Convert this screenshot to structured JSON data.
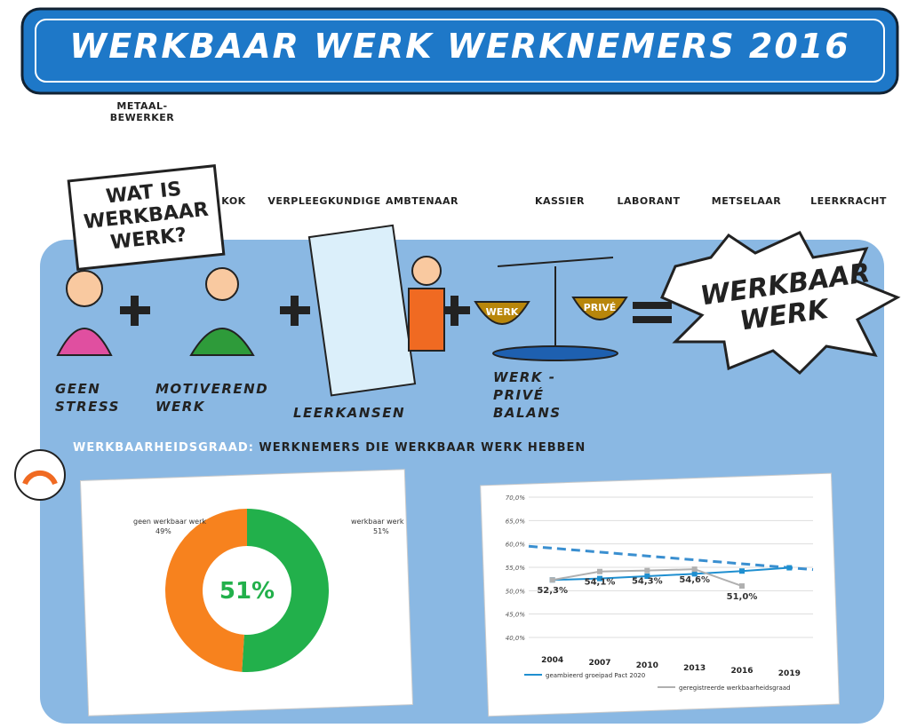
{
  "title": "WERKBAAR WERK WERKNEMERS 2016",
  "occupations": [
    "METAAL-BEWERKER",
    "KOK",
    "VERPLEEGKUNDIGE",
    "AMBTENAAR",
    "KASSIER",
    "LABORANT",
    "METSELAAR",
    "LEERKRACHT"
  ],
  "question": "WAT IS WERKBAAR WERK?",
  "components": [
    "GEEN STRESS",
    "MOTIVEREND WERK",
    "LEERKANSEN",
    "WERK - PRIVÉ BALANS"
  ],
  "scale_labels": [
    "WERK",
    "PRIVÉ"
  ],
  "result": "WERKBAAR WERK",
  "section_title": {
    "highlight": "WERKBAARHEIDSGRAAD:",
    "rest": "WERKNEMERS DIE WERKBAAR WERK HEBBEN"
  },
  "chart_data": [
    {
      "type": "pie",
      "donut": true,
      "categories": [
        "geen werkbaar werk",
        "werkbaar werk"
      ],
      "values": [
        49,
        51
      ],
      "value_labels": [
        "49%",
        "51%"
      ],
      "colors": [
        "#f7821e",
        "#22b04b"
      ],
      "center_label": "51%"
    },
    {
      "type": "line",
      "categories": [
        "2004",
        "2007",
        "2010",
        "2013",
        "2016",
        "2019"
      ],
      "ylim": [
        40,
        70
      ],
      "yticks": [
        {
          "value": 40,
          "label": "40,0%"
        },
        {
          "value": 45,
          "label": "45,0%"
        },
        {
          "value": 50,
          "label": "50,0%"
        },
        {
          "value": 55,
          "label": "55,0%"
        },
        {
          "value": 60,
          "label": "60,0%"
        },
        {
          "value": 65,
          "label": "65,0%"
        },
        {
          "value": 70,
          "label": "70,0%"
        }
      ],
      "grid": true,
      "series": [
        {
          "name": "geambieerd groeipad Pact 2020",
          "color": "#1f8fd0",
          "values": [
            52.3,
            52.6,
            53.1,
            53.6,
            54.2,
            54.9
          ]
        },
        {
          "name": "geregistreerde werkbaarheidsgraad",
          "color": "#b0b0b0",
          "values": [
            52.3,
            54.1,
            54.3,
            54.6,
            51.0,
            null
          ],
          "value_labels": [
            "52,3%",
            "54,1%",
            "54,3%",
            "54,6%",
            "51,0%",
            null
          ]
        }
      ],
      "target_line": {
        "values": [
          59.5,
          54.5
        ],
        "color": "#3a8fd0",
        "dashed": true
      }
    }
  ]
}
